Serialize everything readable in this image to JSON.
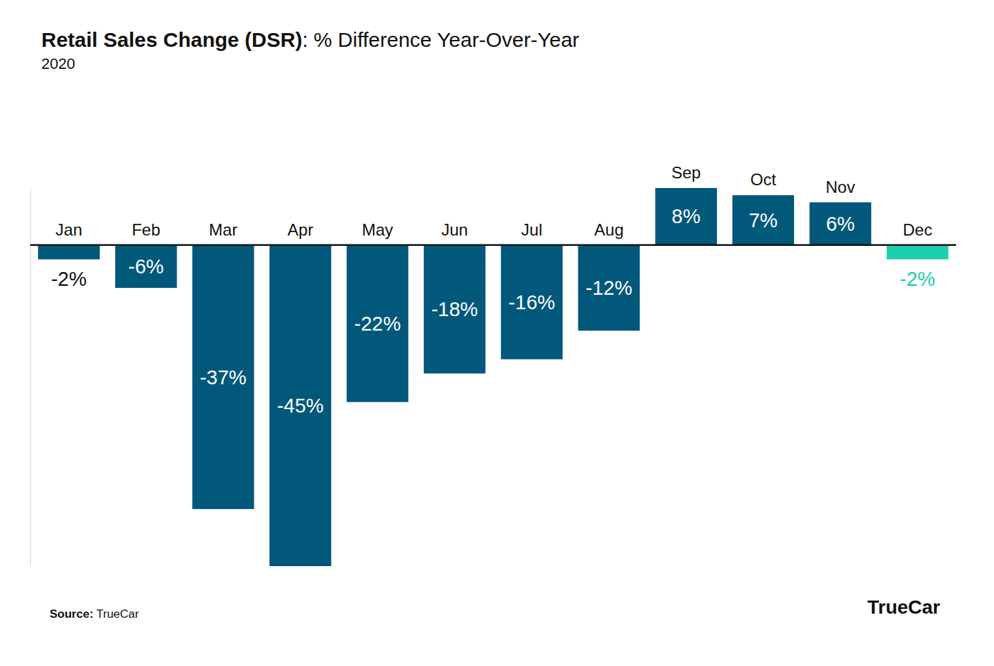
{
  "chart_data": {
    "type": "bar",
    "title": "Retail Sales Change (DSR): % Difference Year-Over-Year",
    "subtitle": "2020",
    "source": "Source: TrueCar",
    "logo": "TrueCar",
    "categories": [
      "Jan",
      "Feb",
      "Mar",
      "Apr",
      "May",
      "Jun",
      "Jul",
      "Aug",
      "Sep",
      "Oct",
      "Nov",
      "Dec"
    ],
    "values": [
      -2,
      -6,
      -37,
      -45,
      -22,
      -18,
      -16,
      -12,
      8,
      7,
      6,
      -2
    ],
    "value_labels": [
      "-2%",
      "-6%",
      "-37%",
      "-45%",
      "-22%",
      "-18%",
      "-16%",
      "-12%",
      "8%",
      "7%",
      "6%",
      "-2%"
    ],
    "colors": [
      "#02587a",
      "#02587a",
      "#02587a",
      "#02587a",
      "#02587a",
      "#02587a",
      "#02587a",
      "#02587a",
      "#02587a",
      "#02587a",
      "#02587a",
      "#1ccfae"
    ],
    "ylim": [
      -45,
      8
    ],
    "yticks": [
      0
    ],
    "grid": false,
    "data_labels": true,
    "tick_labels": "x"
  }
}
